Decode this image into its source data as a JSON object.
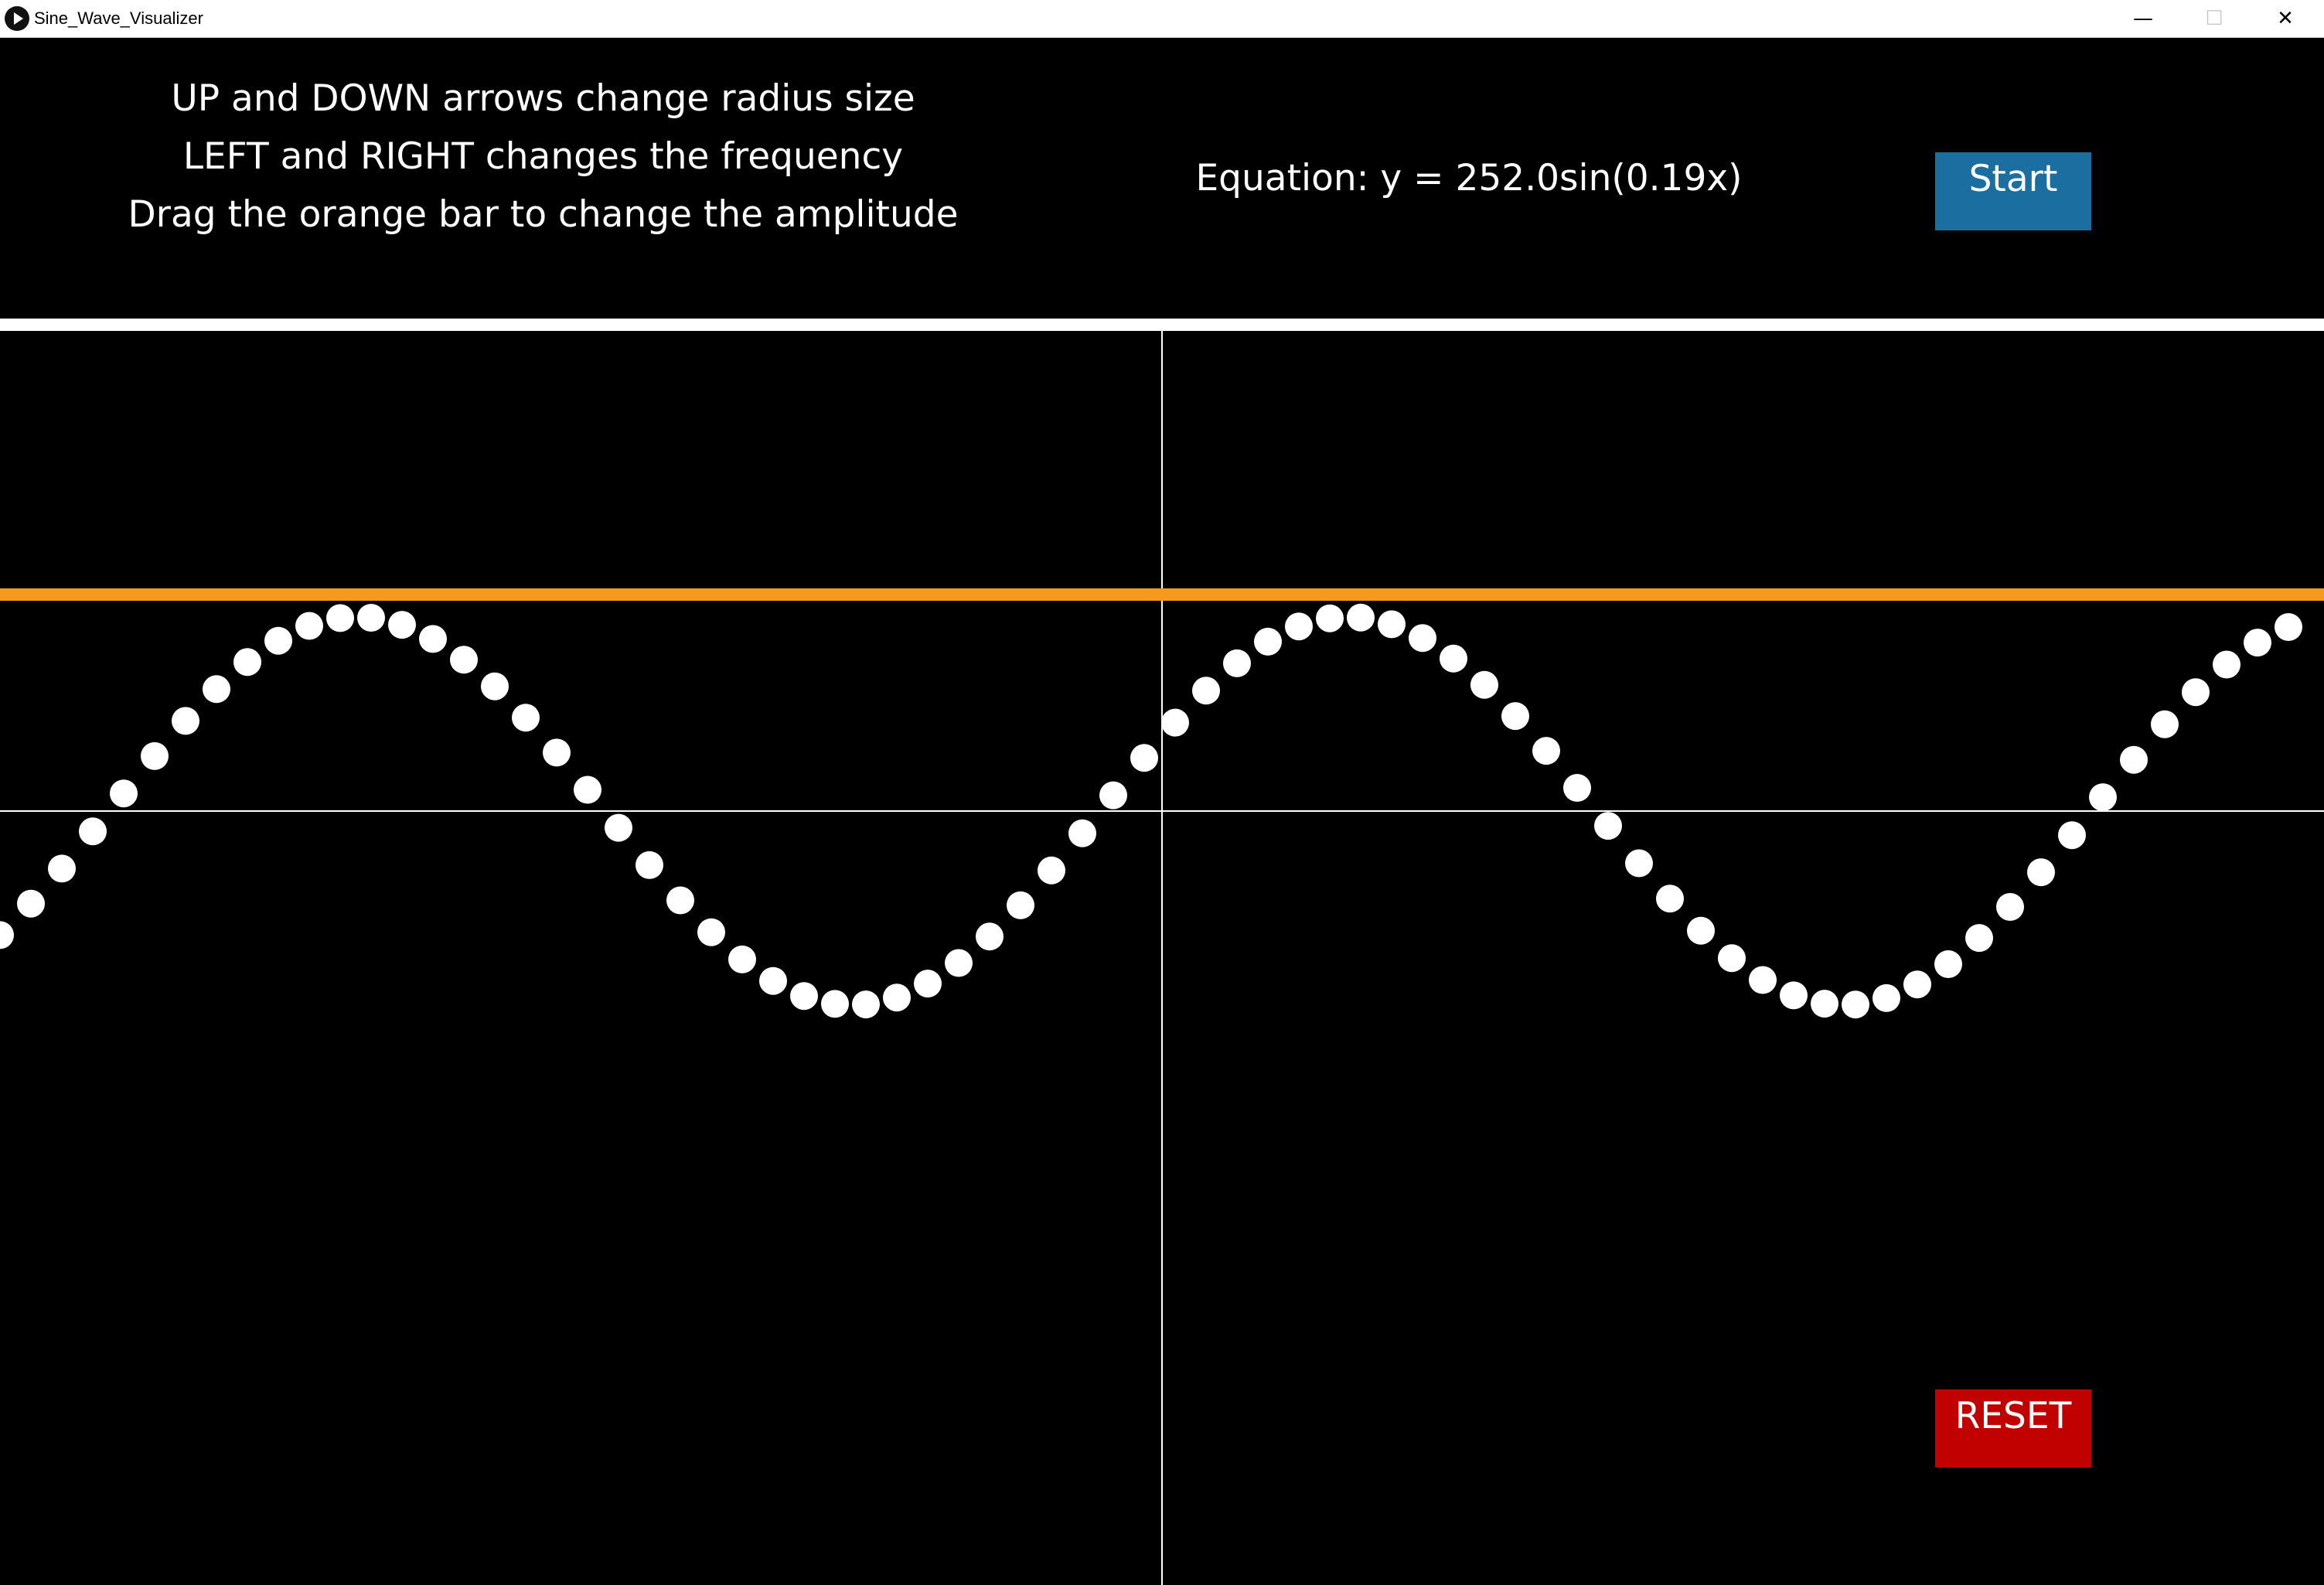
{
  "window": {
    "title": "Sine_Wave_Visualizer",
    "icon": "play-icon",
    "controls": {
      "minimize": "—",
      "maximize": "☐",
      "close": "✕"
    }
  },
  "instructions": [
    "UP and DOWN arrows change radius size",
    "LEFT and RIGHT changes the frequency",
    "Drag the orange bar to change the amplitude"
  ],
  "equation": "Equation: y = 252.0sin(0.19x)",
  "buttons": {
    "start": "Start",
    "reset": "RESET"
  },
  "colors": {
    "background": "#000000",
    "dots": "#ffffff",
    "axes": "#ffffff",
    "amplitude_bar": "#f7991c",
    "start_button": "#1a6fa0",
    "reset_button": "#c10000"
  },
  "wave": {
    "amplitude": 252.0,
    "frequency": 0.19
  }
}
